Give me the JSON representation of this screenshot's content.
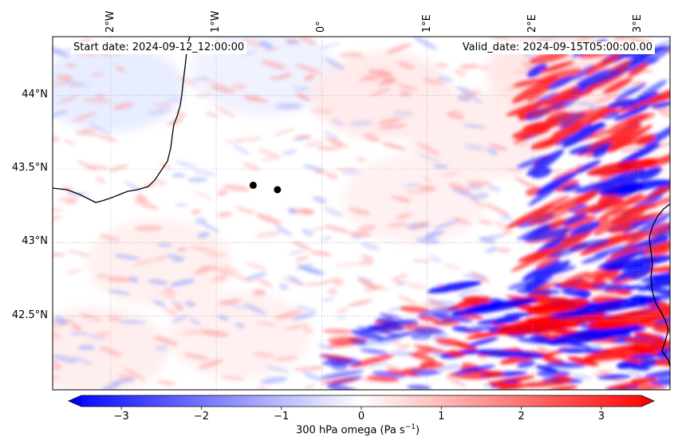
{
  "annotations": {
    "start_date": "Start date: 2024-09-12_12:00:00",
    "valid_date": "Valid_date: 2024-09-15T05:00:00.00"
  },
  "map": {
    "field": "300 hPa omega",
    "lon_range": [
      -2.55,
      3.3
    ],
    "lat_range": [
      42.0,
      44.4
    ],
    "lon_ticks": [
      {
        "value": -2,
        "label": "2°W"
      },
      {
        "value": -1,
        "label": "1°W"
      },
      {
        "value": 0,
        "label": "0°"
      },
      {
        "value": 1,
        "label": "1°E"
      },
      {
        "value": 2,
        "label": "2°E"
      },
      {
        "value": 3,
        "label": "3°E"
      }
    ],
    "lat_ticks": [
      {
        "value": 44,
        "label": "44°N"
      },
      {
        "value": 43.5,
        "label": "43.5°N"
      },
      {
        "value": 43,
        "label": "43°N"
      },
      {
        "value": 42.5,
        "label": "42.5°N"
      }
    ],
    "gridlines": true,
    "points": [
      {
        "lon": -0.65,
        "lat": 43.39
      },
      {
        "lon": -0.42,
        "lat": 43.36
      }
    ],
    "colors": {
      "negative": "#0000ff",
      "zero": "#ffffff",
      "positive": "#ff0000",
      "coast": "#000000",
      "point": "#000000"
    }
  },
  "colorbar": {
    "label": "300 hPa omega (Pa s",
    "label_sup": "−1",
    "label_end": ")",
    "range": [
      -3.5,
      3.5
    ],
    "ticks": [
      {
        "value": -3,
        "label": "−3"
      },
      {
        "value": -2,
        "label": "−2"
      },
      {
        "value": -1,
        "label": "−1"
      },
      {
        "value": 0,
        "label": "0"
      },
      {
        "value": 1,
        "label": "1"
      },
      {
        "value": 2,
        "label": "2"
      },
      {
        "value": 3,
        "label": "3"
      }
    ],
    "extend": "both"
  }
}
